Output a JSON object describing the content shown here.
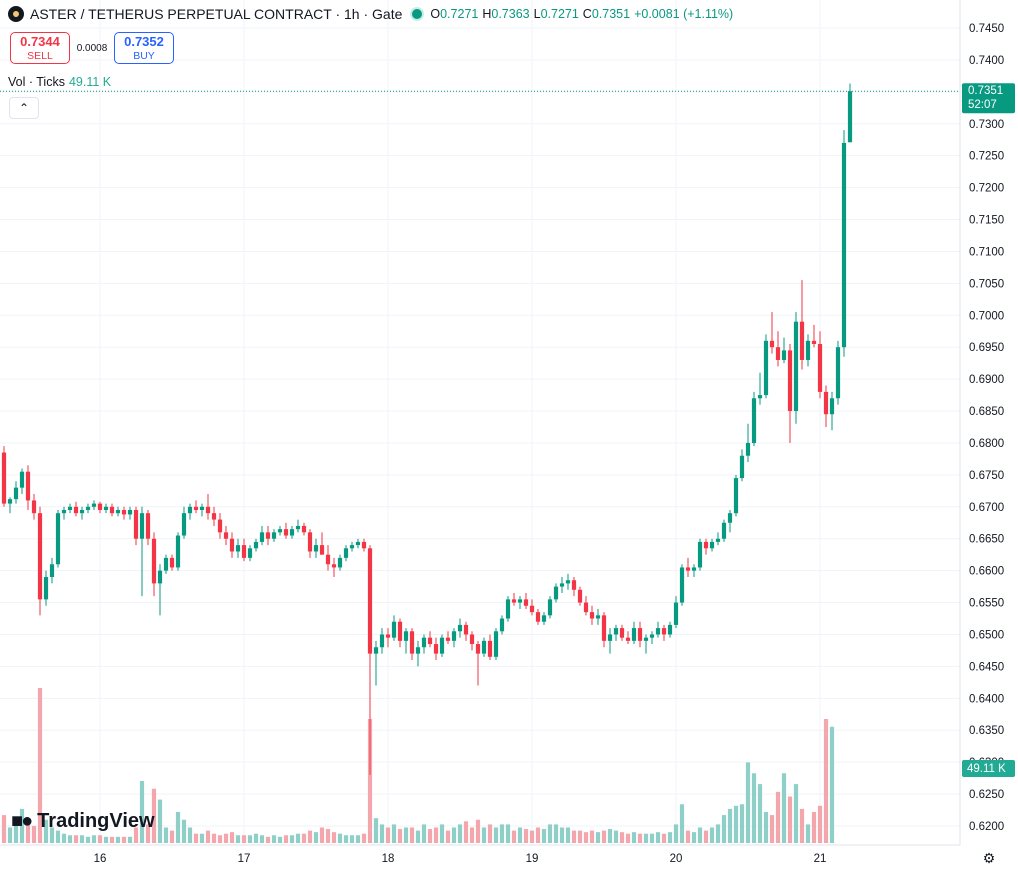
{
  "header": {
    "symbol": "ASTER / TETHERUS PERPETUAL CONTRACT · 1h · Gate",
    "o_label": "O",
    "o": "0.7271",
    "h_label": "H",
    "h": "0.7363",
    "l_label": "L",
    "l": "0.7271",
    "c_label": "C",
    "c": "0.7351",
    "change": "+0.0081 (+1.11%)"
  },
  "trade": {
    "sell_price": "0.7344",
    "sell_label": "SELL",
    "spread": "0.0008",
    "buy_price": "0.7352",
    "buy_label": "BUY"
  },
  "volume": {
    "label": "Vol · Ticks",
    "value": "49.11 K"
  },
  "collapse_icon": "chevron-up",
  "branding": {
    "text": "TradingView"
  },
  "colors": {
    "up": "#089981",
    "down": "#f23645",
    "vol_up": "#8ecfc7",
    "vol_down": "#f4a6ad"
  },
  "chart_data": {
    "type": "candlestick",
    "price_axis": {
      "ticks": [
        "0.7450",
        "0.7400",
        "0.7350",
        "0.7300",
        "0.7250",
        "0.7200",
        "0.7150",
        "0.7100",
        "0.7050",
        "0.7000",
        "0.6950",
        "0.6900",
        "0.6850",
        "0.6800",
        "0.6750",
        "0.6700",
        "0.6650",
        "0.6600",
        "0.6550",
        "0.6500",
        "0.6450",
        "0.6400",
        "0.6350",
        "0.6300",
        "0.6250",
        "0.6200"
      ],
      "range": [
        0.6175,
        0.7475
      ]
    },
    "time_axis": {
      "ticks": [
        "16",
        "17",
        "18",
        "19",
        "20",
        "21"
      ],
      "tick_index": [
        16,
        40,
        64,
        88,
        112,
        136
      ]
    },
    "last_price_label": "0.7351",
    "countdown_label": "52:07",
    "last_volume_label": "49.11 K",
    "candles": [
      [
        0.6785,
        0.6795,
        0.67,
        0.6705
      ],
      [
        0.6705,
        0.6715,
        0.669,
        0.6712
      ],
      [
        0.6712,
        0.674,
        0.6705,
        0.673
      ],
      [
        0.673,
        0.676,
        0.672,
        0.6755
      ],
      [
        0.6755,
        0.6765,
        0.6695,
        0.671
      ],
      [
        0.671,
        0.672,
        0.668,
        0.669
      ],
      [
        0.669,
        0.67,
        0.653,
        0.6555
      ],
      [
        0.6555,
        0.66,
        0.6545,
        0.659
      ],
      [
        0.659,
        0.662,
        0.658,
        0.661
      ],
      [
        0.661,
        0.6695,
        0.6605,
        0.669
      ],
      [
        0.669,
        0.67,
        0.668,
        0.6695
      ],
      [
        0.6695,
        0.6705,
        0.669,
        0.67
      ],
      [
        0.67,
        0.6708,
        0.6685,
        0.669
      ],
      [
        0.669,
        0.67,
        0.668,
        0.6695
      ],
      [
        0.6695,
        0.6705,
        0.669,
        0.67
      ],
      [
        0.67,
        0.671,
        0.6695,
        0.6705
      ],
      [
        0.6705,
        0.6708,
        0.669,
        0.6695
      ],
      [
        0.6695,
        0.6705,
        0.669,
        0.67
      ],
      [
        0.67,
        0.6705,
        0.6685,
        0.669
      ],
      [
        0.669,
        0.67,
        0.6685,
        0.6695
      ],
      [
        0.6695,
        0.67,
        0.668,
        0.6688
      ],
      [
        0.6688,
        0.67,
        0.668,
        0.6695
      ],
      [
        0.6695,
        0.67,
        0.664,
        0.665
      ],
      [
        0.665,
        0.67,
        0.656,
        0.669
      ],
      [
        0.669,
        0.6695,
        0.664,
        0.665
      ],
      [
        0.665,
        0.666,
        0.656,
        0.658
      ],
      [
        0.658,
        0.661,
        0.653,
        0.66
      ],
      [
        0.66,
        0.6625,
        0.6595,
        0.662
      ],
      [
        0.662,
        0.6625,
        0.66,
        0.6605
      ],
      [
        0.6605,
        0.666,
        0.66,
        0.6655
      ],
      [
        0.6655,
        0.67,
        0.665,
        0.669
      ],
      [
        0.669,
        0.6705,
        0.668,
        0.67
      ],
      [
        0.67,
        0.671,
        0.669,
        0.6695
      ],
      [
        0.6695,
        0.6705,
        0.6685,
        0.67
      ],
      [
        0.67,
        0.672,
        0.668,
        0.669
      ],
      [
        0.669,
        0.67,
        0.667,
        0.668
      ],
      [
        0.668,
        0.669,
        0.665,
        0.666
      ],
      [
        0.666,
        0.667,
        0.664,
        0.665
      ],
      [
        0.665,
        0.666,
        0.662,
        0.663
      ],
      [
        0.663,
        0.665,
        0.662,
        0.664
      ],
      [
        0.664,
        0.665,
        0.6615,
        0.662
      ],
      [
        0.662,
        0.664,
        0.6615,
        0.6635
      ],
      [
        0.6635,
        0.665,
        0.663,
        0.6645
      ],
      [
        0.6645,
        0.667,
        0.664,
        0.666
      ],
      [
        0.666,
        0.667,
        0.664,
        0.665
      ],
      [
        0.665,
        0.6665,
        0.6645,
        0.666
      ],
      [
        0.666,
        0.667,
        0.6655,
        0.6665
      ],
      [
        0.6665,
        0.6675,
        0.665,
        0.6655
      ],
      [
        0.6655,
        0.667,
        0.665,
        0.6665
      ],
      [
        0.6665,
        0.668,
        0.666,
        0.667
      ],
      [
        0.667,
        0.6675,
        0.6655,
        0.666
      ],
      [
        0.666,
        0.6665,
        0.662,
        0.663
      ],
      [
        0.663,
        0.665,
        0.662,
        0.664
      ],
      [
        0.664,
        0.666,
        0.663,
        0.6625
      ],
      [
        0.6625,
        0.664,
        0.66,
        0.661
      ],
      [
        0.661,
        0.662,
        0.659,
        0.6605
      ],
      [
        0.6605,
        0.6625,
        0.66,
        0.662
      ],
      [
        0.662,
        0.664,
        0.6615,
        0.6635
      ],
      [
        0.6635,
        0.6645,
        0.663,
        0.664
      ],
      [
        0.664,
        0.665,
        0.6635,
        0.6645
      ],
      [
        0.6645,
        0.665,
        0.663,
        0.6635
      ],
      [
        0.6635,
        0.664,
        0.628,
        0.647
      ],
      [
        0.647,
        0.649,
        0.642,
        0.648
      ],
      [
        0.648,
        0.651,
        0.647,
        0.65
      ],
      [
        0.65,
        0.651,
        0.648,
        0.6495
      ],
      [
        0.6495,
        0.653,
        0.649,
        0.652
      ],
      [
        0.652,
        0.6525,
        0.648,
        0.649
      ],
      [
        0.649,
        0.651,
        0.647,
        0.6505
      ],
      [
        0.6505,
        0.651,
        0.646,
        0.647
      ],
      [
        0.647,
        0.649,
        0.645,
        0.648
      ],
      [
        0.648,
        0.65,
        0.647,
        0.6495
      ],
      [
        0.6495,
        0.6505,
        0.648,
        0.6485
      ],
      [
        0.6485,
        0.6495,
        0.646,
        0.647
      ],
      [
        0.647,
        0.65,
        0.6465,
        0.6495
      ],
      [
        0.6495,
        0.6505,
        0.6485,
        0.649
      ],
      [
        0.649,
        0.651,
        0.648,
        0.6505
      ],
      [
        0.6505,
        0.6525,
        0.6495,
        0.6515
      ],
      [
        0.6515,
        0.652,
        0.649,
        0.65
      ],
      [
        0.65,
        0.6505,
        0.6475,
        0.6485
      ],
      [
        0.6485,
        0.649,
        0.642,
        0.647
      ],
      [
        0.647,
        0.6495,
        0.6465,
        0.649
      ],
      [
        0.649,
        0.65,
        0.646,
        0.6465
      ],
      [
        0.6465,
        0.651,
        0.646,
        0.6505
      ],
      [
        0.6505,
        0.653,
        0.65,
        0.6525
      ],
      [
        0.6525,
        0.656,
        0.652,
        0.6555
      ],
      [
        0.6555,
        0.6565,
        0.6545,
        0.655
      ],
      [
        0.655,
        0.656,
        0.654,
        0.6555
      ],
      [
        0.6555,
        0.6565,
        0.654,
        0.6545
      ],
      [
        0.6545,
        0.6555,
        0.653,
        0.6535
      ],
      [
        0.6535,
        0.654,
        0.6515,
        0.652
      ],
      [
        0.652,
        0.6535,
        0.6515,
        0.653
      ],
      [
        0.653,
        0.656,
        0.6525,
        0.6555
      ],
      [
        0.6555,
        0.658,
        0.655,
        0.6575
      ],
      [
        0.6575,
        0.659,
        0.6565,
        0.658
      ],
      [
        0.658,
        0.6595,
        0.657,
        0.6585
      ],
      [
        0.6585,
        0.659,
        0.656,
        0.657
      ],
      [
        0.657,
        0.6575,
        0.6545,
        0.655
      ],
      [
        0.655,
        0.656,
        0.653,
        0.6535
      ],
      [
        0.6535,
        0.6545,
        0.6515,
        0.6525
      ],
      [
        0.6525,
        0.654,
        0.6515,
        0.653
      ],
      [
        0.653,
        0.6535,
        0.648,
        0.649
      ],
      [
        0.649,
        0.651,
        0.647,
        0.65
      ],
      [
        0.65,
        0.6515,
        0.649,
        0.651
      ],
      [
        0.651,
        0.6515,
        0.649,
        0.6495
      ],
      [
        0.6495,
        0.6505,
        0.6485,
        0.649
      ],
      [
        0.649,
        0.652,
        0.6485,
        0.651
      ],
      [
        0.651,
        0.652,
        0.648,
        0.649
      ],
      [
        0.649,
        0.65,
        0.647,
        0.6495
      ],
      [
        0.6495,
        0.6505,
        0.6485,
        0.65
      ],
      [
        0.65,
        0.652,
        0.6495,
        0.651
      ],
      [
        0.651,
        0.6515,
        0.649,
        0.65
      ],
      [
        0.65,
        0.652,
        0.6495,
        0.6515
      ],
      [
        0.6515,
        0.656,
        0.651,
        0.655
      ],
      [
        0.655,
        0.661,
        0.6545,
        0.6605
      ],
      [
        0.6605,
        0.662,
        0.659,
        0.66
      ],
      [
        0.66,
        0.661,
        0.659,
        0.6605
      ],
      [
        0.6605,
        0.665,
        0.66,
        0.6645
      ],
      [
        0.6645,
        0.665,
        0.6625,
        0.6635
      ],
      [
        0.6635,
        0.665,
        0.663,
        0.6645
      ],
      [
        0.6645,
        0.666,
        0.664,
        0.665
      ],
      [
        0.665,
        0.668,
        0.6645,
        0.6675
      ],
      [
        0.6675,
        0.6695,
        0.666,
        0.669
      ],
      [
        0.669,
        0.675,
        0.6685,
        0.6745
      ],
      [
        0.6745,
        0.679,
        0.674,
        0.678
      ],
      [
        0.678,
        0.683,
        0.677,
        0.68
      ],
      [
        0.68,
        0.688,
        0.6795,
        0.687
      ],
      [
        0.687,
        0.691,
        0.686,
        0.6875
      ],
      [
        0.6875,
        0.697,
        0.687,
        0.696
      ],
      [
        0.696,
        0.7005,
        0.694,
        0.695
      ],
      [
        0.695,
        0.6975,
        0.692,
        0.693
      ],
      [
        0.693,
        0.6965,
        0.6925,
        0.6945
      ],
      [
        0.6945,
        0.6955,
        0.68,
        0.685
      ],
      [
        0.685,
        0.7005,
        0.683,
        0.699
      ],
      [
        0.699,
        0.7055,
        0.6915,
        0.693
      ],
      [
        0.693,
        0.697,
        0.692,
        0.696
      ],
      [
        0.696,
        0.6985,
        0.695,
        0.6955
      ],
      [
        0.6955,
        0.6975,
        0.687,
        0.688
      ],
      [
        0.688,
        0.689,
        0.6825,
        0.6845
      ],
      [
        0.6845,
        0.688,
        0.682,
        0.687
      ],
      [
        0.687,
        0.696,
        0.686,
        0.695
      ],
      [
        0.695,
        0.729,
        0.6935,
        0.727
      ],
      [
        0.7271,
        0.7363,
        0.7271,
        0.7351
      ]
    ],
    "volumes": [
      0.18,
      0.1,
      0.12,
      0.22,
      0.14,
      0.11,
      1.0,
      0.15,
      0.1,
      0.08,
      0.06,
      0.05,
      0.05,
      0.05,
      0.04,
      0.05,
      0.05,
      0.04,
      0.04,
      0.04,
      0.04,
      0.04,
      0.1,
      0.4,
      0.12,
      0.35,
      0.28,
      0.1,
      0.08,
      0.2,
      0.15,
      0.1,
      0.06,
      0.06,
      0.08,
      0.06,
      0.05,
      0.06,
      0.07,
      0.05,
      0.05,
      0.05,
      0.06,
      0.05,
      0.04,
      0.05,
      0.04,
      0.05,
      0.05,
      0.06,
      0.06,
      0.08,
      0.07,
      0.1,
      0.09,
      0.07,
      0.06,
      0.05,
      0.05,
      0.05,
      0.06,
      0.8,
      0.16,
      0.12,
      0.1,
      0.12,
      0.09,
      0.1,
      0.1,
      0.08,
      0.12,
      0.09,
      0.1,
      0.12,
      0.08,
      0.1,
      0.12,
      0.14,
      0.1,
      0.15,
      0.1,
      0.12,
      0.1,
      0.12,
      0.12,
      0.08,
      0.1,
      0.09,
      0.08,
      0.1,
      0.09,
      0.12,
      0.12,
      0.1,
      0.1,
      0.08,
      0.08,
      0.07,
      0.08,
      0.07,
      0.08,
      0.09,
      0.08,
      0.07,
      0.06,
      0.07,
      0.06,
      0.06,
      0.06,
      0.07,
      0.06,
      0.07,
      0.12,
      0.25,
      0.08,
      0.07,
      0.1,
      0.08,
      0.1,
      0.12,
      0.18,
      0.22,
      0.24,
      0.25,
      0.52,
      0.45,
      0.38,
      0.2,
      0.18,
      0.33,
      0.45,
      0.3,
      0.38,
      0.22,
      0.12,
      0.2,
      0.24,
      0.8,
      0.75
    ]
  }
}
